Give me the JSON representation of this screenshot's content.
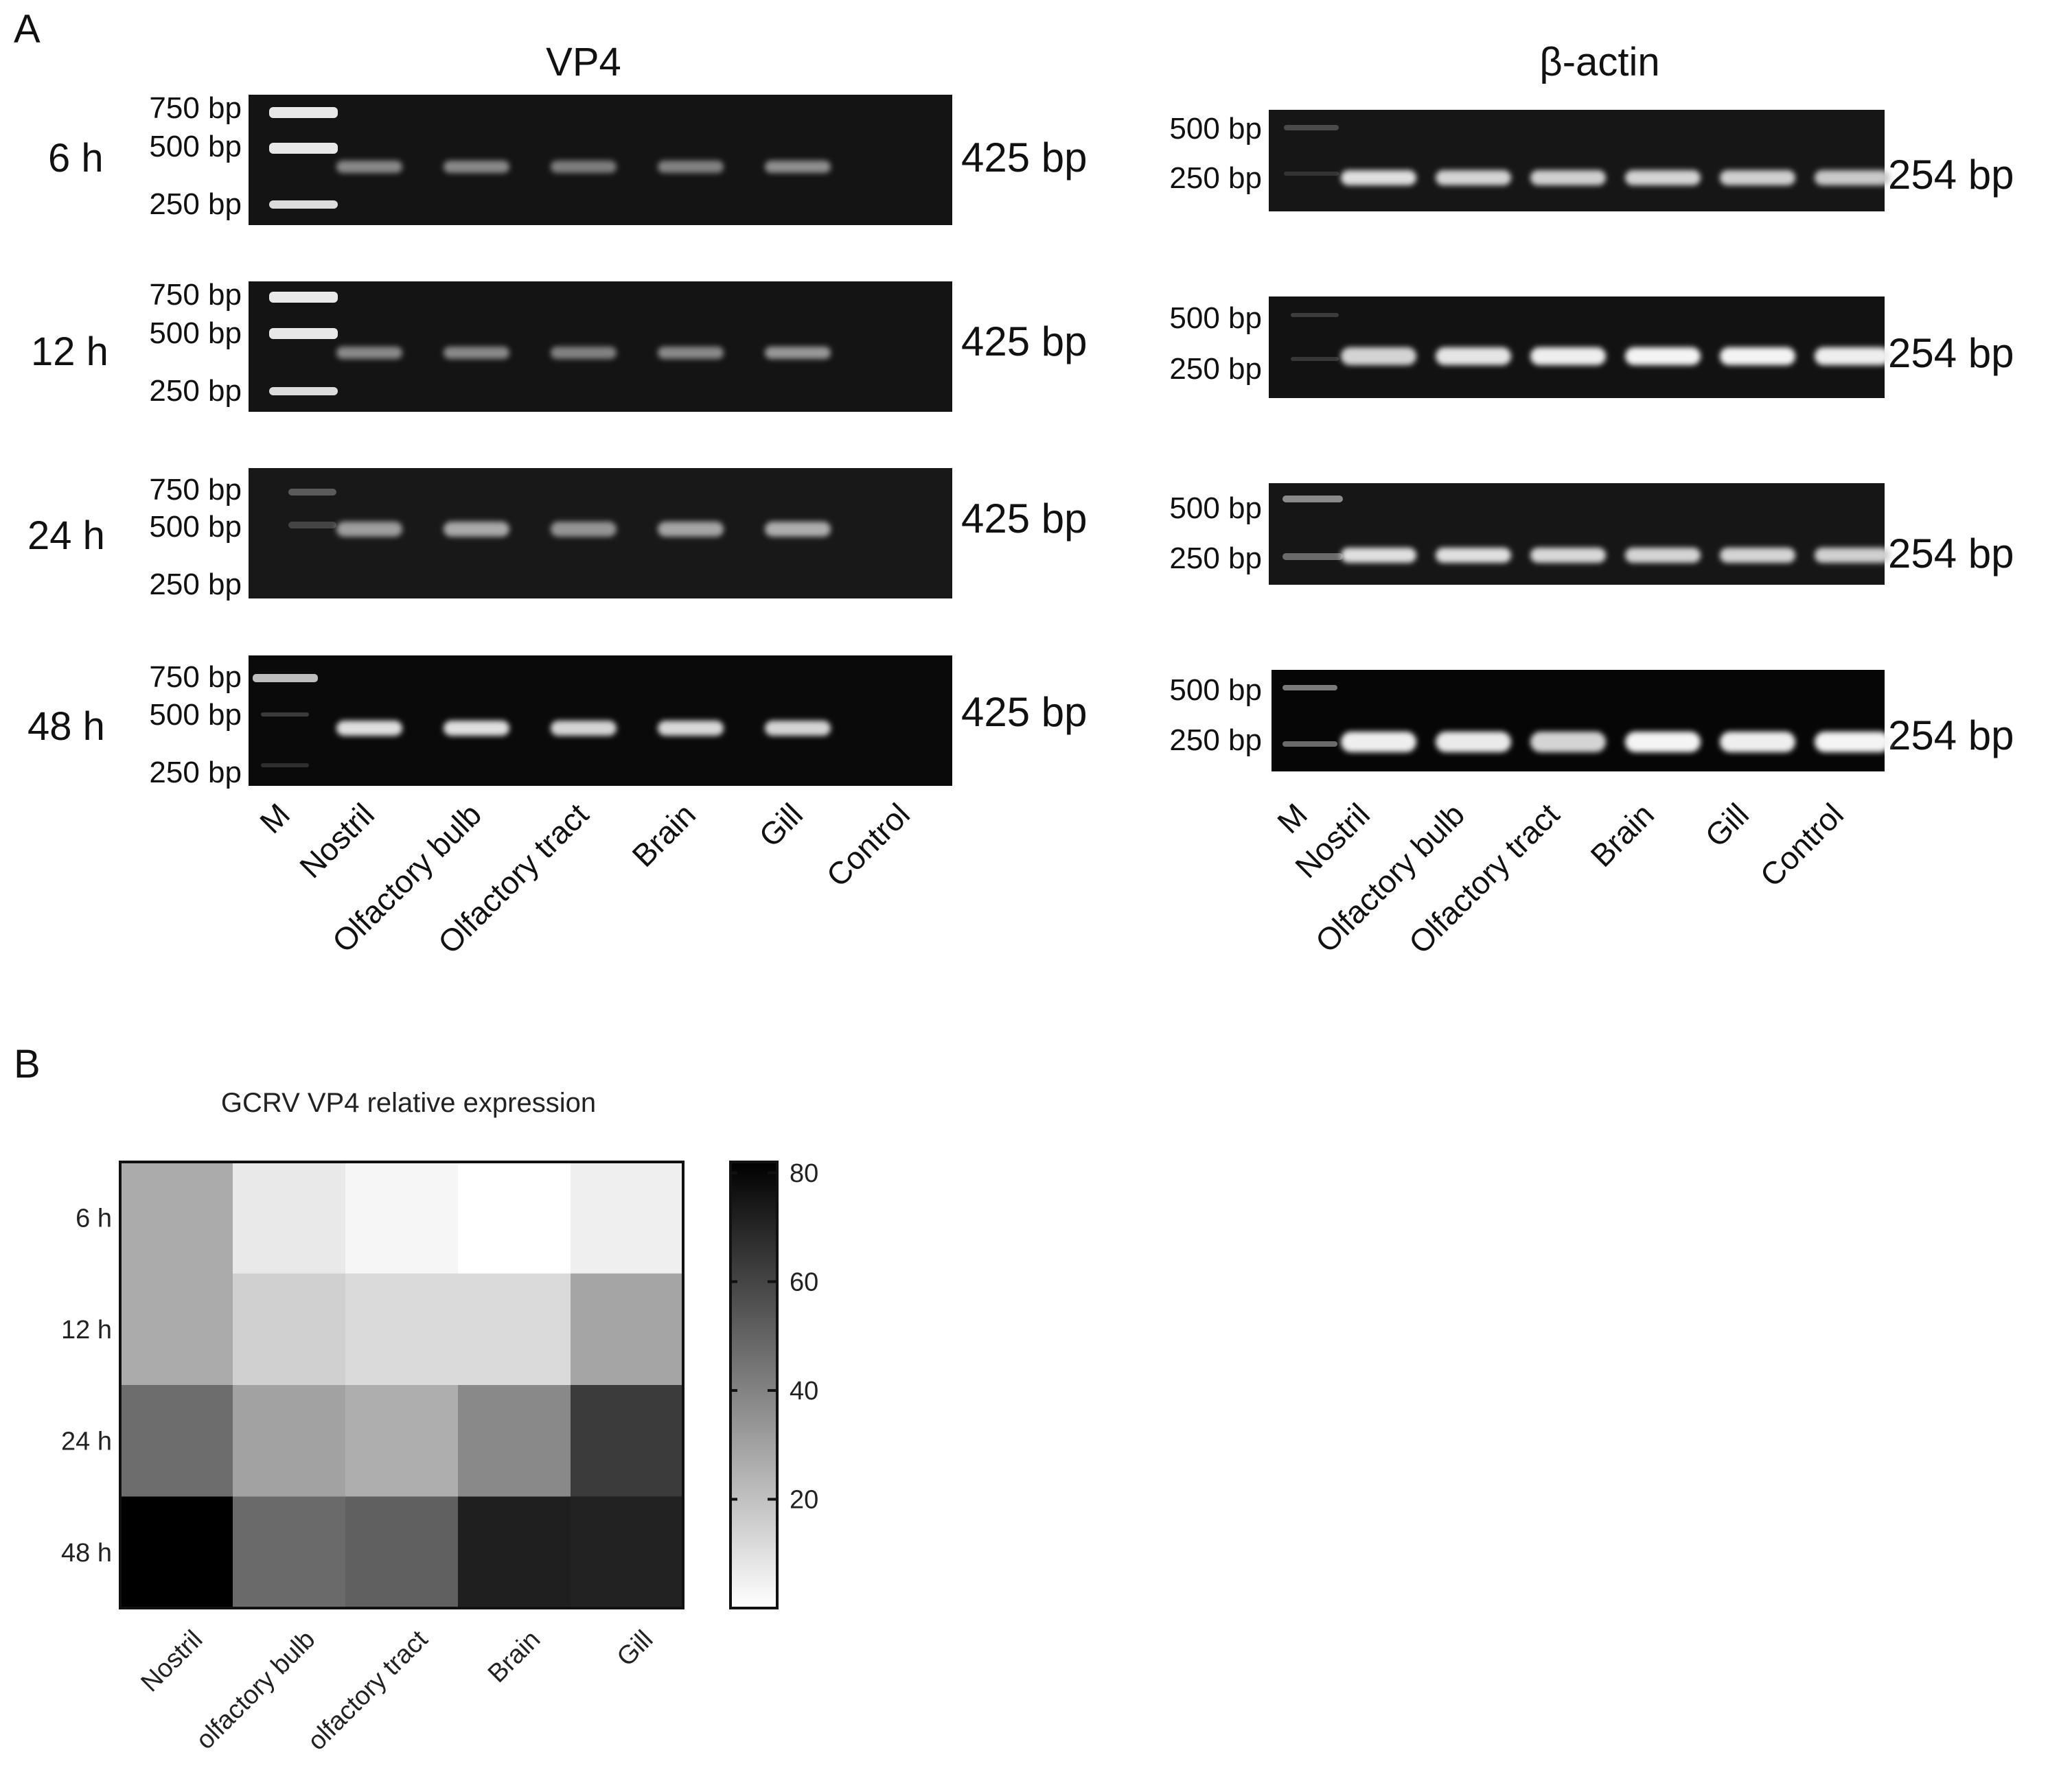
{
  "panel_a": {
    "letter": "A",
    "vp4": {
      "title": "VP4",
      "marker_labels": [
        "750 bp",
        "500 bp",
        "250 bp"
      ],
      "band_size": "425 bp",
      "lanes": [
        "M",
        "Nostril",
        "Olfactory bulb",
        "Olfactory tract",
        "Brain",
        "Gill",
        "Control"
      ],
      "rows": [
        {
          "time": "6 h",
          "band_intensity": [
            0.45,
            0.45,
            0.4,
            0.42,
            0.48,
            0.0
          ]
        },
        {
          "time": "12 h",
          "band_intensity": [
            0.45,
            0.45,
            0.42,
            0.45,
            0.52,
            0.0
          ]
        },
        {
          "time": "24 h",
          "band_intensity": [
            0.55,
            0.6,
            0.5,
            0.58,
            0.62,
            0.0
          ]
        },
        {
          "time": "48 h",
          "band_intensity": [
            0.85,
            0.85,
            0.8,
            0.82,
            0.8,
            0.0
          ]
        }
      ]
    },
    "bactin": {
      "title": "β-actin",
      "marker_labels": [
        "500 bp",
        "250 bp"
      ],
      "band_size": "254 bp",
      "lanes": [
        "M",
        "Nostril",
        "Olfactory bulb",
        "Olfactory tract",
        "Brain",
        "Gill",
        "Control"
      ],
      "rows": [
        {
          "time": "6 h",
          "band_intensity": [
            0.85,
            0.8,
            0.78,
            0.8,
            0.78,
            0.75
          ]
        },
        {
          "time": "12 h",
          "band_intensity": [
            0.8,
            0.88,
            0.92,
            0.95,
            0.95,
            0.92
          ]
        },
        {
          "time": "24 h",
          "band_intensity": [
            0.85,
            0.85,
            0.82,
            0.8,
            0.8,
            0.78
          ]
        },
        {
          "time": "48 h",
          "band_intensity": [
            0.92,
            0.9,
            0.8,
            0.95,
            0.92,
            0.95
          ]
        }
      ]
    }
  },
  "panel_b": {
    "letter": "B",
    "chart_data": {
      "type": "heatmap",
      "title": "GCRV VP4 relative expression",
      "rows": [
        "6 h",
        "12 h",
        "24 h",
        "48 h"
      ],
      "columns": [
        "Nostril",
        "olfactory bulb",
        "olfactory tract",
        "Brain",
        "Gill"
      ],
      "values": [
        [
          27,
          7,
          3,
          0,
          5
        ],
        [
          27,
          15,
          12,
          12,
          29
        ],
        [
          47,
          30,
          26,
          38,
          63
        ],
        [
          82,
          48,
          51,
          72,
          71
        ]
      ],
      "colorbar": {
        "min": 0,
        "max": 82,
        "ticks": [
          20,
          40,
          60,
          80
        ],
        "low_color": "#ffffff",
        "high_color": "#000000"
      }
    }
  }
}
